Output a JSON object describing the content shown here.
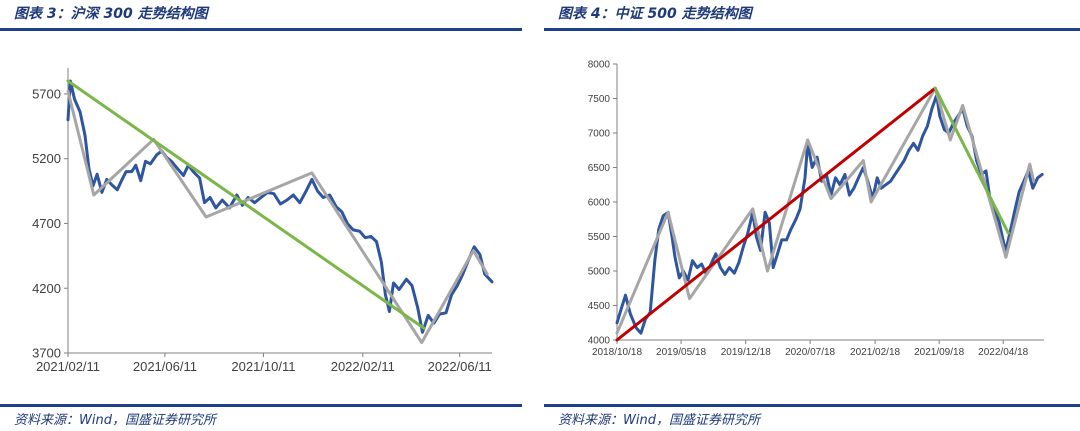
{
  "charts": {
    "left": {
      "title": "图表 3：沪深 300 走势结构图",
      "source": "资料来源：Wind，国盛证券研究所"
    },
    "right": {
      "title": "图表 4：中证 500 走势结构图",
      "source": "资料来源：Wind，国盛证券研究所"
    }
  },
  "colors": {
    "price": "#2e55a0",
    "structure": "#a6a6a6",
    "trend_down": "#7ab648",
    "trend_up": "#c00000",
    "axis": "#808080",
    "brand": "#1e3f8c"
  },
  "chart_data": [
    {
      "type": "line",
      "title": "图表 3：沪深 300 走势结构图",
      "xlabel": "",
      "ylabel": "",
      "ylim": [
        3700,
        5900
      ],
      "yticks": [
        3700,
        4200,
        4700,
        5200,
        5700
      ],
      "xlim": [
        "2021-02-11",
        "2022-07-21"
      ],
      "xtick_labels": [
        "2021/02/11",
        "2021/06/11",
        "2021/10/11",
        "2022/02/11",
        "2022/06/11"
      ],
      "xtick_dates": [
        "2021-02-11",
        "2021-06-11",
        "2021-10-11",
        "2022-02-11",
        "2022-06-11"
      ],
      "series": [
        {
          "role": "price",
          "color": "#2e55a0",
          "points": [
            [
              "2021-02-11",
              5500
            ],
            [
              "2021-02-14",
              5800
            ],
            [
              "2021-02-19",
              5660
            ],
            [
              "2021-02-26",
              5560
            ],
            [
              "2021-03-04",
              5380
            ],
            [
              "2021-03-09",
              5120
            ],
            [
              "2021-03-14",
              4990
            ],
            [
              "2021-03-19",
              5080
            ],
            [
              "2021-03-25",
              4940
            ],
            [
              "2021-03-31",
              5040
            ],
            [
              "2021-04-06",
              5000
            ],
            [
              "2021-04-13",
              4960
            ],
            [
              "2021-04-19",
              5040
            ],
            [
              "2021-04-24",
              5100
            ],
            [
              "2021-05-01",
              5100
            ],
            [
              "2021-05-06",
              5150
            ],
            [
              "2021-05-12",
              5030
            ],
            [
              "2021-05-18",
              5180
            ],
            [
              "2021-05-24",
              5160
            ],
            [
              "2021-06-01",
              5230
            ],
            [
              "2021-06-07",
              5260
            ],
            [
              "2021-06-13",
              5210
            ],
            [
              "2021-06-19",
              5180
            ],
            [
              "2021-06-27",
              5120
            ],
            [
              "2021-07-04",
              5070
            ],
            [
              "2021-07-10",
              5150
            ],
            [
              "2021-07-16",
              5100
            ],
            [
              "2021-07-24",
              5050
            ],
            [
              "2021-07-30",
              4860
            ],
            [
              "2021-08-06",
              4900
            ],
            [
              "2021-08-13",
              4820
            ],
            [
              "2021-08-21",
              4880
            ],
            [
              "2021-08-30",
              4820
            ],
            [
              "2021-09-08",
              4920
            ],
            [
              "2021-09-15",
              4840
            ],
            [
              "2021-09-22",
              4900
            ],
            [
              "2021-09-30",
              4860
            ],
            [
              "2021-10-08",
              4900
            ],
            [
              "2021-10-16",
              4940
            ],
            [
              "2021-10-24",
              4930
            ],
            [
              "2021-11-01",
              4850
            ],
            [
              "2021-11-09",
              4880
            ],
            [
              "2021-11-17",
              4920
            ],
            [
              "2021-11-25",
              4860
            ],
            [
              "2021-12-02",
              4940
            ],
            [
              "2021-12-10",
              5040
            ],
            [
              "2021-12-17",
              4950
            ],
            [
              "2021-12-24",
              4900
            ],
            [
              "2022-01-01",
              4920
            ],
            [
              "2022-01-09",
              4830
            ],
            [
              "2022-01-16",
              4790
            ],
            [
              "2022-01-23",
              4700
            ],
            [
              "2022-01-30",
              4650
            ],
            [
              "2022-02-07",
              4640
            ],
            [
              "2022-02-14",
              4590
            ],
            [
              "2022-02-21",
              4600
            ],
            [
              "2022-02-28",
              4560
            ],
            [
              "2022-03-06",
              4400
            ],
            [
              "2022-03-11",
              4150
            ],
            [
              "2022-03-16",
              4020
            ],
            [
              "2022-03-21",
              4240
            ],
            [
              "2022-03-28",
              4190
            ],
            [
              "2022-04-06",
              4270
            ],
            [
              "2022-04-13",
              4220
            ],
            [
              "2022-04-20",
              4050
            ],
            [
              "2022-04-26",
              3860
            ],
            [
              "2022-05-03",
              3990
            ],
            [
              "2022-05-10",
              3930
            ],
            [
              "2022-05-17",
              4000
            ],
            [
              "2022-05-25",
              4010
            ],
            [
              "2022-06-01",
              4150
            ],
            [
              "2022-06-08",
              4220
            ],
            [
              "2022-06-15",
              4310
            ],
            [
              "2022-06-22",
              4420
            ],
            [
              "2022-06-29",
              4520
            ],
            [
              "2022-07-06",
              4460
            ],
            [
              "2022-07-12",
              4310
            ],
            [
              "2022-07-21",
              4250
            ]
          ]
        },
        {
          "role": "structure",
          "color": "#a6a6a6",
          "points": [
            [
              "2021-02-11",
              5720
            ],
            [
              "2021-03-15",
              4920
            ],
            [
              "2021-05-28",
              5350
            ],
            [
              "2021-08-01",
              4750
            ],
            [
              "2021-12-10",
              5090
            ],
            [
              "2022-04-25",
              3780
            ],
            [
              "2022-06-28",
              4490
            ],
            [
              "2022-07-15",
              4310
            ]
          ]
        },
        {
          "role": "trend",
          "color": "#7ab648",
          "points": [
            [
              "2021-02-11",
              5800
            ],
            [
              "2022-04-28",
              3890
            ]
          ]
        }
      ]
    },
    {
      "type": "line",
      "title": "图表 4：中证 500 走势结构图",
      "xlabel": "",
      "ylabel": "",
      "ylim": [
        4000,
        8000
      ],
      "yticks": [
        4000,
        4500,
        5000,
        5500,
        6000,
        6500,
        7000,
        7500,
        8000
      ],
      "xlim": [
        "2018-10-18",
        "2022-08-31"
      ],
      "xtick_labels": [
        "2018/10/18",
        "2019/05/18",
        "2019/12/18",
        "2020/07/18",
        "2021/02/18",
        "2021/09/18",
        "2022/04/18"
      ],
      "xtick_dates": [
        "2018-10-18",
        "2019-05-18",
        "2019-12-18",
        "2020-07-18",
        "2021-02-18",
        "2021-09-18",
        "2022-04-18"
      ],
      "series": [
        {
          "role": "price",
          "color": "#2e55a0",
          "points": [
            [
              "2018-10-18",
              4250
            ],
            [
              "2018-11-01",
              4450
            ],
            [
              "2018-11-15",
              4650
            ],
            [
              "2018-12-01",
              4380
            ],
            [
              "2018-12-20",
              4180
            ],
            [
              "2019-01-05",
              4100
            ],
            [
              "2019-01-20",
              4300
            ],
            [
              "2019-02-05",
              4400
            ],
            [
              "2019-02-20",
              5150
            ],
            [
              "2019-03-05",
              5600
            ],
            [
              "2019-03-20",
              5800
            ],
            [
              "2019-04-05",
              5850
            ],
            [
              "2019-04-18",
              5500
            ],
            [
              "2019-04-28",
              5200
            ],
            [
              "2019-05-12",
              4900
            ],
            [
              "2019-05-25",
              5000
            ],
            [
              "2019-06-10",
              4870
            ],
            [
              "2019-06-25",
              5150
            ],
            [
              "2019-07-10",
              5050
            ],
            [
              "2019-07-25",
              5100
            ],
            [
              "2019-08-10",
              4950
            ],
            [
              "2019-08-25",
              5100
            ],
            [
              "2019-09-10",
              5250
            ],
            [
              "2019-09-25",
              5050
            ],
            [
              "2019-10-10",
              4950
            ],
            [
              "2019-10-25",
              5050
            ],
            [
              "2019-11-10",
              4970
            ],
            [
              "2019-11-25",
              5120
            ],
            [
              "2019-12-10",
              5350
            ],
            [
              "2019-12-25",
              5550
            ],
            [
              "2020-01-10",
              5850
            ],
            [
              "2020-01-22",
              5500
            ],
            [
              "2020-02-05",
              5300
            ],
            [
              "2020-02-20",
              5850
            ],
            [
              "2020-03-05",
              5700
            ],
            [
              "2020-03-18",
              5050
            ],
            [
              "2020-04-01",
              5250
            ],
            [
              "2020-04-15",
              5450
            ],
            [
              "2020-05-01",
              5450
            ],
            [
              "2020-05-15",
              5600
            ],
            [
              "2020-06-01",
              5750
            ],
            [
              "2020-06-15",
              5900
            ],
            [
              "2020-07-01",
              6350
            ],
            [
              "2020-07-10",
              6850
            ],
            [
              "2020-07-25",
              6500
            ],
            [
              "2020-08-10",
              6650
            ],
            [
              "2020-08-25",
              6300
            ],
            [
              "2020-09-10",
              6400
            ],
            [
              "2020-09-25",
              6100
            ],
            [
              "2020-10-10",
              6350
            ],
            [
              "2020-10-25",
              6250
            ],
            [
              "2020-11-10",
              6400
            ],
            [
              "2020-11-25",
              6100
            ],
            [
              "2020-12-10",
              6200
            ],
            [
              "2020-12-25",
              6350
            ],
            [
              "2021-01-10",
              6500
            ],
            [
              "2021-01-25",
              6300
            ],
            [
              "2021-02-10",
              6050
            ],
            [
              "2021-02-25",
              6350
            ],
            [
              "2021-03-10",
              6200
            ],
            [
              "2021-03-25",
              6250
            ],
            [
              "2021-04-10",
              6300
            ],
            [
              "2021-04-25",
              6400
            ],
            [
              "2021-05-10",
              6500
            ],
            [
              "2021-05-25",
              6600
            ],
            [
              "2021-06-10",
              6750
            ],
            [
              "2021-06-25",
              6850
            ],
            [
              "2021-07-10",
              6750
            ],
            [
              "2021-07-25",
              6950
            ],
            [
              "2021-08-10",
              7100
            ],
            [
              "2021-08-25",
              7350
            ],
            [
              "2021-09-10",
              7550
            ],
            [
              "2021-09-20",
              7250
            ],
            [
              "2021-10-05",
              7050
            ],
            [
              "2021-10-20",
              7000
            ],
            [
              "2021-11-05",
              7150
            ],
            [
              "2021-11-20",
              7250
            ],
            [
              "2021-12-05",
              7350
            ],
            [
              "2021-12-20",
              7100
            ],
            [
              "2022-01-05",
              6950
            ],
            [
              "2022-01-20",
              6600
            ],
            [
              "2022-02-05",
              6400
            ],
            [
              "2022-02-20",
              6450
            ],
            [
              "2022-03-05",
              6050
            ],
            [
              "2022-03-20",
              5900
            ],
            [
              "2022-04-05",
              5700
            ],
            [
              "2022-04-20",
              5400
            ],
            [
              "2022-04-27",
              5300
            ],
            [
              "2022-05-10",
              5550
            ],
            [
              "2022-05-25",
              5850
            ],
            [
              "2022-06-10",
              6150
            ],
            [
              "2022-06-25",
              6300
            ],
            [
              "2022-07-10",
              6450
            ],
            [
              "2022-07-25",
              6200
            ],
            [
              "2022-08-10",
              6350
            ],
            [
              "2022-08-25",
              6400
            ]
          ]
        },
        {
          "role": "structure",
          "color": "#a6a6a6",
          "points": [
            [
              "2018-10-18",
              4100
            ],
            [
              "2019-04-05",
              5850
            ],
            [
              "2019-06-15",
              4600
            ],
            [
              "2020-01-10",
              5900
            ],
            [
              "2020-02-28",
              5000
            ],
            [
              "2020-07-10",
              6900
            ],
            [
              "2020-09-25",
              6050
            ],
            [
              "2021-01-10",
              6600
            ],
            [
              "2021-02-05",
              6000
            ],
            [
              "2021-09-05",
              7650
            ],
            [
              "2021-10-25",
              6900
            ],
            [
              "2021-12-05",
              7400
            ],
            [
              "2022-04-27",
              5200
            ],
            [
              "2022-07-15",
              6550
            ],
            [
              "2022-07-28",
              6300
            ]
          ]
        },
        {
          "role": "trend_up",
          "color": "#c00000",
          "points": [
            [
              "2018-10-18",
              4000
            ],
            [
              "2021-09-05",
              7650
            ]
          ]
        },
        {
          "role": "trend_down",
          "color": "#7ab648",
          "points": [
            [
              "2021-09-05",
              7650
            ],
            [
              "2022-05-05",
              5550
            ]
          ]
        }
      ]
    }
  ]
}
